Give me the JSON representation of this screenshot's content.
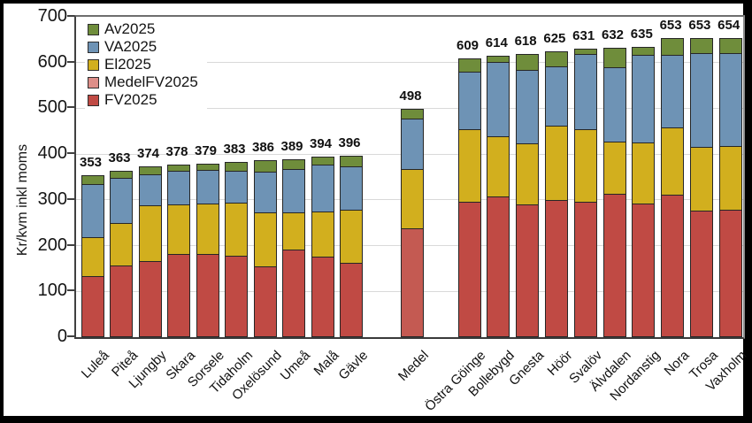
{
  "chart_data": {
    "type": "bar",
    "stacked": true,
    "title": "",
    "ylabel": "Kr/kvm inkl moms",
    "xlabel": "",
    "ylim": [
      0,
      700
    ],
    "yticks": [
      0,
      100,
      200,
      300,
      400,
      500,
      600,
      700
    ],
    "grid": "horizontal",
    "legend_position": "top-left-inside",
    "legend": [
      {
        "label": "Av2025",
        "color": "#6f8d3b"
      },
      {
        "label": "VA2025",
        "color": "#6e93b5"
      },
      {
        "label": "El2025",
        "color": "#d2af1e"
      },
      {
        "label": "MedelFV2025",
        "color": "#dd8e88"
      },
      {
        "label": "FV2025",
        "color": "#c04a44"
      }
    ],
    "series_order_bottom_to_top": [
      "FV2025",
      "MedelFV2025",
      "El2025",
      "VA2025",
      "Av2025"
    ],
    "bar_colors": {
      "FV2025": "#c04a44",
      "MedelFV2025": "#c45a52",
      "El2025": "#d2af1e",
      "VA2025": "#6e93b5",
      "Av2025": "#6f8d3b"
    },
    "bars": [
      {
        "label": "Luleå",
        "group": 0,
        "total": 353,
        "FV2025": 132,
        "El2025": 85,
        "VA2025": 116,
        "Av2025": 20
      },
      {
        "label": "Piteå",
        "group": 0,
        "total": 363,
        "FV2025": 155,
        "El2025": 93,
        "VA2025": 98,
        "Av2025": 17
      },
      {
        "label": "Ljungby",
        "group": 0,
        "total": 374,
        "FV2025": 165,
        "El2025": 122,
        "VA2025": 66,
        "Av2025": 21
      },
      {
        "label": "Skara",
        "group": 0,
        "total": 378,
        "FV2025": 180,
        "El2025": 109,
        "VA2025": 72,
        "Av2025": 17
      },
      {
        "label": "Sorsele",
        "group": 0,
        "total": 379,
        "FV2025": 179,
        "El2025": 111,
        "VA2025": 73,
        "Av2025": 16
      },
      {
        "label": "Tidaholm",
        "group": 0,
        "total": 383,
        "FV2025": 176,
        "El2025": 116,
        "VA2025": 69,
        "Av2025": 22
      },
      {
        "label": "Oxelösund",
        "group": 0,
        "total": 386,
        "FV2025": 153,
        "El2025": 118,
        "VA2025": 88,
        "Av2025": 27
      },
      {
        "label": "Umeå",
        "group": 0,
        "total": 389,
        "FV2025": 189,
        "El2025": 82,
        "VA2025": 94,
        "Av2025": 24
      },
      {
        "label": "Malå",
        "group": 0,
        "total": 394,
        "FV2025": 174,
        "El2025": 98,
        "VA2025": 103,
        "Av2025": 19
      },
      {
        "label": "Gävle",
        "group": 0,
        "total": 396,
        "FV2025": 160,
        "El2025": 117,
        "VA2025": 94,
        "Av2025": 25
      },
      {
        "label": "Medel",
        "group": 1,
        "total": 498,
        "MedelFV2025": 235,
        "El2025": 131,
        "VA2025": 110,
        "Av2025": 22
      },
      {
        "label": "Östra Göinge",
        "group": 2,
        "total": 609,
        "FV2025": 293,
        "El2025": 159,
        "VA2025": 127,
        "Av2025": 30
      },
      {
        "label": "Bollebygd",
        "group": 2,
        "total": 614,
        "FV2025": 305,
        "El2025": 132,
        "VA2025": 162,
        "Av2025": 15
      },
      {
        "label": "Gnesta",
        "group": 2,
        "total": 618,
        "FV2025": 289,
        "El2025": 132,
        "VA2025": 162,
        "Av2025": 35
      },
      {
        "label": "Höör",
        "group": 2,
        "total": 625,
        "FV2025": 298,
        "El2025": 162,
        "VA2025": 129,
        "Av2025": 36
      },
      {
        "label": "Svalöv",
        "group": 2,
        "total": 631,
        "FV2025": 293,
        "El2025": 160,
        "VA2025": 163,
        "Av2025": 15
      },
      {
        "label": "Älvdalen",
        "group": 2,
        "total": 632,
        "FV2025": 312,
        "El2025": 113,
        "VA2025": 163,
        "Av2025": 44
      },
      {
        "label": "Nordanstig",
        "group": 2,
        "total": 635,
        "FV2025": 291,
        "El2025": 132,
        "VA2025": 191,
        "Av2025": 21
      },
      {
        "label": "Nora",
        "group": 2,
        "total": 653,
        "FV2025": 309,
        "El2025": 148,
        "VA2025": 158,
        "Av2025": 38
      },
      {
        "label": "Trosa",
        "group": 2,
        "total": 653,
        "FV2025": 274,
        "El2025": 139,
        "VA2025": 206,
        "Av2025": 34
      },
      {
        "label": "Vaxholm",
        "group": 2,
        "total": 654,
        "FV2025": 276,
        "El2025": 139,
        "VA2025": 203,
        "Av2025": 36
      }
    ]
  }
}
